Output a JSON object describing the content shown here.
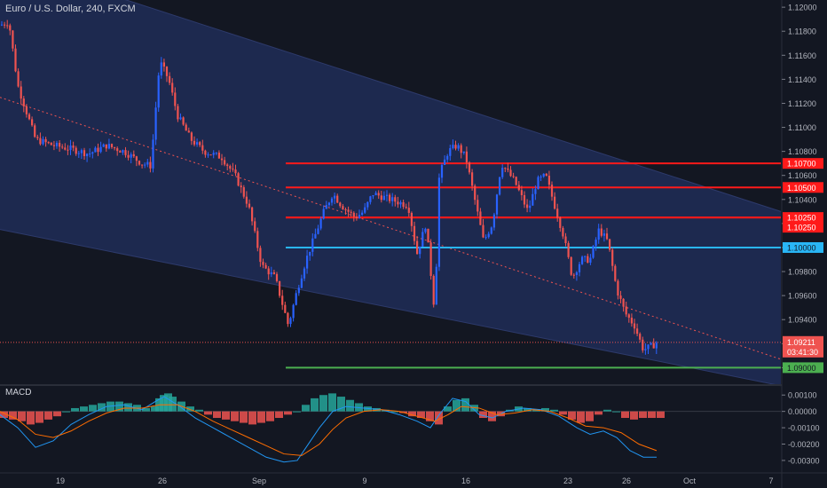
{
  "header": {
    "title": "Euro / U.S. Dollar, 240, FXCM"
  },
  "macd_panel": {
    "label": "MACD"
  },
  "colors": {
    "background": "#131722",
    "channel_fill": "#1e2a52",
    "bull": "#2962ff",
    "bear": "#ef5350",
    "red_level": "#ff1a1a",
    "blue_level": "#29b6f6",
    "green_level": "#4caf50",
    "macd_line": "#2196f3",
    "signal_line": "#ff6d00",
    "hist_pos": "#26a69a",
    "hist_neg": "#ef5350"
  },
  "chart_data": [
    {
      "type": "candlestick",
      "title": "Euro / U.S. Dollar, 240, FXCM",
      "x_ticks": [
        "19",
        "26",
        "Sep",
        "9",
        "16",
        "23",
        "26",
        "Oct",
        "7"
      ],
      "y_ticks": [
        "1.12000",
        "1.11800",
        "1.11600",
        "1.11400",
        "1.11200",
        "1.11000",
        "1.10800",
        "1.10600",
        "1.10400",
        "1.10200",
        "1.10000",
        "1.09800",
        "1.09600",
        "1.09400",
        "1.09200",
        "1.09000"
      ],
      "ylim": [
        1.0887,
        1.1206
      ],
      "current_price": "1.09211",
      "countdown": "03:41:30",
      "levels": [
        {
          "label": "1.10700",
          "value": 1.107,
          "color": "red"
        },
        {
          "label": "1.10500",
          "value": 1.105,
          "color": "red"
        },
        {
          "label": "1.10250",
          "value": 1.1025,
          "color": "red"
        },
        {
          "label": "1.10250",
          "value": 1.1025,
          "color": "red"
        },
        {
          "label": "1.10000",
          "value": 1.1,
          "color": "blue"
        },
        {
          "label": "1.09000",
          "value": 1.09,
          "color": "green"
        }
      ],
      "price_path": [
        [
          0,
          1.1185
        ],
        [
          10,
          1.1188
        ],
        [
          20,
          1.1135
        ],
        [
          40,
          1.109
        ],
        [
          60,
          1.1085
        ],
        [
          80,
          1.1082
        ],
        [
          100,
          1.1078
        ],
        [
          120,
          1.1085
        ],
        [
          140,
          1.108
        ],
        [
          160,
          1.107
        ],
        [
          170,
          1.1068
        ],
        [
          180,
          1.1155
        ],
        [
          190,
          1.114
        ],
        [
          200,
          1.111
        ],
        [
          215,
          1.109
        ],
        [
          230,
          1.108
        ],
        [
          250,
          1.1075
        ],
        [
          265,
          1.106
        ],
        [
          280,
          1.1035
        ],
        [
          295,
          1.0985
        ],
        [
          310,
          1.0975
        ],
        [
          325,
          1.0935
        ],
        [
          335,
          1.0965
        ],
        [
          345,
          1.099
        ],
        [
          355,
          1.101
        ],
        [
          365,
          1.103
        ],
        [
          375,
          1.1045
        ],
        [
          385,
          1.1035
        ],
        [
          400,
          1.1025
        ],
        [
          410,
          1.103
        ],
        [
          420,
          1.1045
        ],
        [
          440,
          1.104
        ],
        [
          460,
          1.1035
        ],
        [
          470,
          1.0995
        ],
        [
          480,
          1.102
        ],
        [
          490,
          1.0945
        ],
        [
          495,
          1.106
        ],
        [
          505,
          1.108
        ],
        [
          515,
          1.1085
        ],
        [
          525,
          1.1075
        ],
        [
          535,
          1.104
        ],
        [
          545,
          1.1005
        ],
        [
          555,
          1.102
        ],
        [
          565,
          1.107
        ],
        [
          580,
          1.1055
        ],
        [
          595,
          1.103
        ],
        [
          605,
          1.1055
        ],
        [
          615,
          1.106
        ],
        [
          625,
          1.1035
        ],
        [
          635,
          1.101
        ],
        [
          645,
          1.0975
        ],
        [
          655,
          1.099
        ],
        [
          665,
          1.099
        ],
        [
          675,
          1.1015
        ],
        [
          685,
          1.1005
        ],
        [
          695,
          1.0965
        ],
        [
          705,
          1.0945
        ],
        [
          715,
          1.0935
        ],
        [
          725,
          1.0915
        ],
        [
          735,
          1.0918
        ],
        [
          740,
          1.0921
        ]
      ],
      "channel": {
        "upper_start": 1.124,
        "upper_end": 1.103,
        "lower_start": 1.1015,
        "lower_end": 1.0885,
        "mid_start": 1.1125,
        "mid_end": 1.0907
      }
    },
    {
      "type": "macd",
      "title": "MACD",
      "y_ticks": [
        "0.00100",
        "0.00000",
        "-0.00100",
        "-0.00200",
        "-0.00300"
      ],
      "ylim": [
        -0.0036,
        0.0015
      ],
      "histogram": [
        [
          0,
          -0.0004
        ],
        [
          10,
          -0.0005
        ],
        [
          20,
          -0.0006
        ],
        [
          30,
          -0.0008
        ],
        [
          40,
          -0.0007
        ],
        [
          50,
          -0.0005
        ],
        [
          60,
          -0.0003
        ],
        [
          70,
          0.0
        ],
        [
          80,
          0.0002
        ],
        [
          90,
          0.0003
        ],
        [
          100,
          0.0004
        ],
        [
          110,
          0.0005
        ],
        [
          120,
          0.0006
        ],
        [
          130,
          0.0006
        ],
        [
          140,
          0.0005
        ],
        [
          150,
          0.0004
        ],
        [
          160,
          0.0002
        ],
        [
          170,
          0.0003
        ],
        [
          175,
          0.0008
        ],
        [
          180,
          0.001
        ],
        [
          185,
          0.0011
        ],
        [
          190,
          0.0009
        ],
        [
          200,
          0.0006
        ],
        [
          210,
          0.0003
        ],
        [
          220,
          0.0001
        ],
        [
          230,
          -0.0002
        ],
        [
          240,
          -0.0004
        ],
        [
          250,
          -0.0005
        ],
        [
          260,
          -0.0006
        ],
        [
          270,
          -0.0007
        ],
        [
          280,
          -0.0008
        ],
        [
          290,
          -0.0007
        ],
        [
          300,
          -0.0006
        ],
        [
          310,
          -0.0004
        ],
        [
          320,
          -0.0002
        ],
        [
          330,
          0.0
        ],
        [
          340,
          0.0004
        ],
        [
          350,
          0.0008
        ],
        [
          360,
          0.001
        ],
        [
          370,
          0.0011
        ],
        [
          380,
          0.0009
        ],
        [
          390,
          0.0007
        ],
        [
          400,
          0.0005
        ],
        [
          410,
          0.0003
        ],
        [
          420,
          0.0002
        ],
        [
          430,
          0.0001
        ],
        [
          440,
          0.0
        ],
        [
          450,
          -0.0001
        ],
        [
          460,
          -0.0003
        ],
        [
          470,
          -0.0004
        ],
        [
          480,
          -0.0006
        ],
        [
          490,
          -0.0008
        ],
        [
          500,
          0.0003
        ],
        [
          510,
          0.0007
        ],
        [
          520,
          0.0008
        ],
        [
          530,
          0.0004
        ],
        [
          540,
          -0.0004
        ],
        [
          550,
          -0.0006
        ],
        [
          560,
          -0.0003
        ],
        [
          570,
          0.0001
        ],
        [
          580,
          0.0003
        ],
        [
          590,
          0.0002
        ],
        [
          600,
          0.0001
        ],
        [
          610,
          0.0002
        ],
        [
          620,
          0.0001
        ],
        [
          630,
          -0.0002
        ],
        [
          640,
          -0.0005
        ],
        [
          650,
          -0.0007
        ],
        [
          660,
          -0.0006
        ],
        [
          670,
          -0.0002
        ],
        [
          680,
          0.0001
        ],
        [
          690,
          0.0
        ],
        [
          700,
          -0.0004
        ],
        [
          710,
          -0.0005
        ],
        [
          720,
          -0.0004
        ],
        [
          730,
          -0.0004
        ],
        [
          740,
          -0.0004
        ]
      ],
      "macd_line": [
        [
          0,
          -0.0002
        ],
        [
          20,
          -0.001
        ],
        [
          40,
          -0.0022
        ],
        [
          60,
          -0.0018
        ],
        [
          80,
          -0.0008
        ],
        [
          100,
          -0.0002
        ],
        [
          120,
          0.0003
        ],
        [
          140,
          0.0004
        ],
        [
          160,
          0.0001
        ],
        [
          175,
          0.0006
        ],
        [
          185,
          0.0009
        ],
        [
          200,
          0.0004
        ],
        [
          220,
          -0.0004
        ],
        [
          240,
          -0.001
        ],
        [
          260,
          -0.0016
        ],
        [
          280,
          -0.0022
        ],
        [
          300,
          -0.0028
        ],
        [
          320,
          -0.0031
        ],
        [
          335,
          -0.003
        ],
        [
          345,
          -0.0022
        ],
        [
          360,
          -0.001
        ],
        [
          375,
          0.0
        ],
        [
          390,
          0.0003
        ],
        [
          410,
          0.0002
        ],
        [
          430,
          0.0001
        ],
        [
          450,
          -0.0002
        ],
        [
          470,
          -0.0006
        ],
        [
          485,
          -0.001
        ],
        [
          495,
          -0.0002
        ],
        [
          510,
          0.0008
        ],
        [
          525,
          0.0006
        ],
        [
          540,
          -0.0002
        ],
        [
          555,
          -0.0004
        ],
        [
          570,
          0.0
        ],
        [
          590,
          0.0002
        ],
        [
          610,
          0.0001
        ],
        [
          630,
          -0.0003
        ],
        [
          650,
          -0.001
        ],
        [
          665,
          -0.0014
        ],
        [
          680,
          -0.0012
        ],
        [
          695,
          -0.0016
        ],
        [
          710,
          -0.0024
        ],
        [
          725,
          -0.0028
        ],
        [
          740,
          -0.0028
        ]
      ],
      "signal_line": [
        [
          0,
          0.0
        ],
        [
          20,
          -0.0005
        ],
        [
          40,
          -0.0014
        ],
        [
          60,
          -0.0016
        ],
        [
          80,
          -0.0012
        ],
        [
          100,
          -0.0006
        ],
        [
          120,
          -0.0001
        ],
        [
          140,
          0.0002
        ],
        [
          160,
          0.0002
        ],
        [
          180,
          0.0004
        ],
        [
          200,
          0.0004
        ],
        [
          220,
          0.0
        ],
        [
          240,
          -0.0006
        ],
        [
          260,
          -0.0011
        ],
        [
          280,
          -0.0016
        ],
        [
          300,
          -0.0021
        ],
        [
          320,
          -0.0026
        ],
        [
          340,
          -0.0027
        ],
        [
          360,
          -0.002
        ],
        [
          375,
          -0.0011
        ],
        [
          390,
          -0.0004
        ],
        [
          410,
          0.0
        ],
        [
          430,
          0.0001
        ],
        [
          450,
          0.0
        ],
        [
          470,
          -0.0003
        ],
        [
          490,
          -0.0006
        ],
        [
          505,
          -0.0002
        ],
        [
          520,
          0.0003
        ],
        [
          540,
          0.0002
        ],
        [
          560,
          -0.0002
        ],
        [
          580,
          -0.0001
        ],
        [
          600,
          0.0001
        ],
        [
          620,
          0.0
        ],
        [
          640,
          -0.0004
        ],
        [
          660,
          -0.0009
        ],
        [
          680,
          -0.001
        ],
        [
          700,
          -0.0013
        ],
        [
          720,
          -0.002
        ],
        [
          740,
          -0.0024
        ]
      ]
    }
  ]
}
